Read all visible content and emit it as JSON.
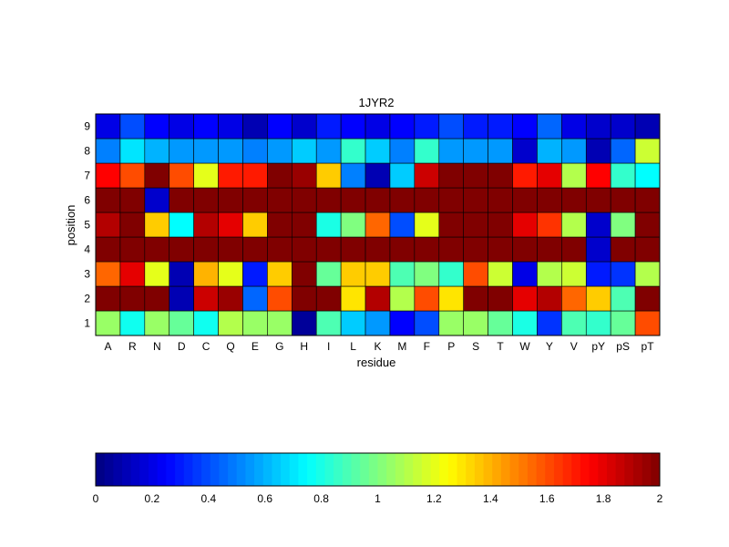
{
  "chart_data": {
    "type": "heatmap",
    "title": "1JYR2",
    "xlabel": "residue",
    "ylabel": "position",
    "x_categories": [
      "A",
      "R",
      "N",
      "D",
      "C",
      "Q",
      "E",
      "G",
      "H",
      "I",
      "L",
      "K",
      "M",
      "F",
      "P",
      "S",
      "T",
      "W",
      "Y",
      "V",
      "pY",
      "pS",
      "pT"
    ],
    "y_categories": [
      "1",
      "2",
      "3",
      "4",
      "5",
      "6",
      "7",
      "8",
      "9"
    ],
    "values": [
      [
        1.05,
        0.78,
        1.05,
        0.95,
        0.78,
        1.1,
        1.05,
        1.05,
        0.05,
        0.9,
        0.65,
        0.55,
        0.25,
        0.4,
        1.05,
        1.05,
        0.95,
        0.8,
        0.35,
        0.9,
        0.85,
        0.95,
        1.6
      ],
      [
        2.0,
        2.0,
        2.0,
        0.1,
        1.85,
        1.95,
        0.45,
        1.6,
        2.0,
        2.0,
        1.3,
        1.9,
        1.1,
        1.6,
        1.3,
        2.0,
        2.0,
        1.8,
        1.9,
        1.55,
        1.35,
        0.9,
        2.0
      ],
      [
        1.55,
        1.8,
        1.2,
        0.1,
        1.4,
        1.2,
        0.3,
        1.35,
        2.0,
        0.95,
        1.35,
        1.35,
        0.9,
        1.0,
        0.85,
        1.6,
        1.15,
        0.2,
        1.1,
        1.15,
        0.3,
        0.35,
        1.1
      ],
      [
        2.0,
        2.0,
        2.0,
        2.0,
        2.0,
        2.0,
        2.0,
        2.0,
        2.0,
        2.0,
        2.0,
        2.0,
        2.0,
        2.0,
        2.0,
        2.0,
        2.0,
        2.0,
        2.0,
        2.0,
        0.15,
        2.0,
        2.0
      ],
      [
        1.9,
        2.0,
        1.35,
        0.75,
        1.9,
        1.8,
        1.35,
        2.0,
        2.0,
        0.8,
        1.0,
        1.55,
        0.4,
        1.2,
        2.0,
        2.0,
        2.0,
        1.8,
        1.65,
        1.1,
        0.15,
        1.0,
        2.0
      ],
      [
        2.0,
        2.0,
        0.15,
        2.0,
        2.0,
        2.0,
        2.0,
        2.0,
        2.0,
        2.0,
        2.0,
        2.0,
        2.0,
        2.0,
        2.0,
        2.0,
        2.0,
        2.0,
        2.0,
        2.0,
        2.0,
        2.0,
        2.0
      ],
      [
        1.75,
        1.6,
        2.0,
        1.6,
        1.2,
        1.7,
        1.7,
        2.0,
        1.95,
        1.35,
        0.5,
        0.1,
        0.65,
        1.85,
        2.0,
        2.0,
        2.0,
        1.7,
        1.8,
        1.1,
        1.75,
        0.85,
        0.75
      ],
      [
        0.5,
        0.7,
        0.6,
        0.55,
        0.55,
        0.55,
        0.5,
        0.55,
        0.65,
        0.55,
        0.85,
        0.65,
        0.5,
        0.85,
        0.55,
        0.55,
        0.55,
        0.15,
        0.6,
        0.55,
        0.1,
        0.45,
        1.15
      ],
      [
        0.2,
        0.4,
        0.25,
        0.2,
        0.25,
        0.2,
        0.1,
        0.25,
        0.15,
        0.3,
        0.25,
        0.2,
        0.25,
        0.3,
        0.4,
        0.3,
        0.3,
        0.25,
        0.45,
        0.2,
        0.15,
        0.15,
        0.1
      ]
    ],
    "colormap": "jet",
    "clim": [
      0,
      2
    ],
    "colorbar_ticks": [
      "0",
      "0.2",
      "0.4",
      "0.6",
      "0.8",
      "1",
      "1.2",
      "1.4",
      "1.6",
      "1.8",
      "2"
    ],
    "colorbar_position": "bottom"
  }
}
